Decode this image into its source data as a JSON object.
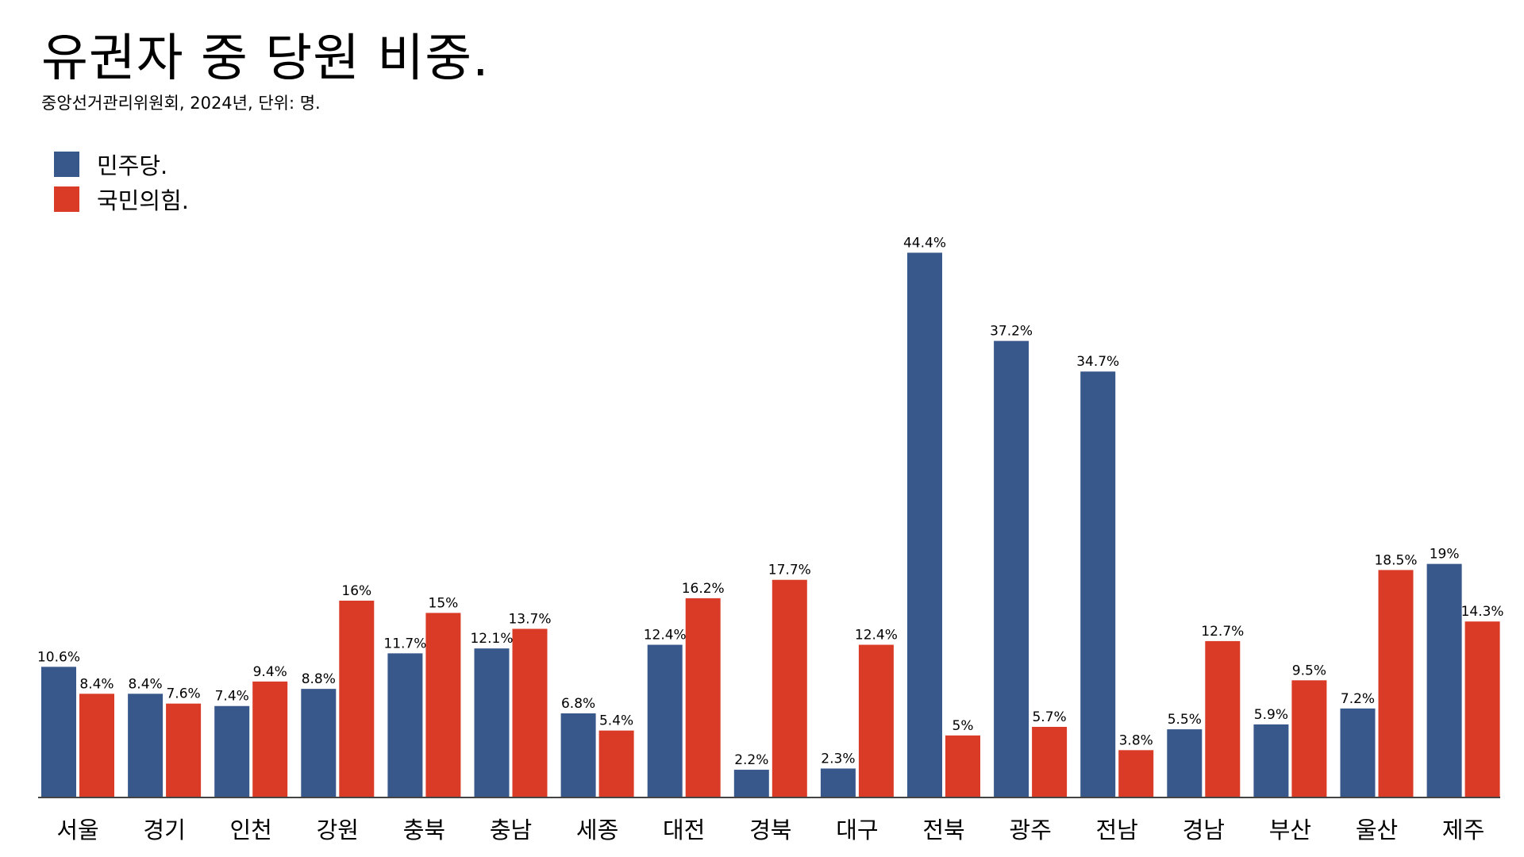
{
  "chart_data": {
    "type": "bar",
    "title": "유권자 중 당원 비중.",
    "subtitle": "중앙선거관리위원회, 2024년, 단위: 명.",
    "legend_position": "top-left",
    "grid": false,
    "ylim": [
      0,
      50
    ],
    "categories": [
      "서울",
      "경기",
      "인천",
      "강원",
      "충북",
      "충남",
      "세종",
      "대전",
      "경북",
      "대구",
      "전북",
      "광주",
      "전남",
      "경남",
      "부산",
      "울산",
      "제주"
    ],
    "series": [
      {
        "name": "민주당.",
        "color": "#38578a",
        "values": [
          10.6,
          8.4,
          7.4,
          8.8,
          11.7,
          12.1,
          6.8,
          12.4,
          2.2,
          2.3,
          44.4,
          37.2,
          34.7,
          5.5,
          5.9,
          7.2,
          19
        ],
        "labels": [
          "10.6%",
          "8.4%",
          "7.4%",
          "8.8%",
          "11.7%",
          "12.1%",
          "6.8%",
          "12.4%",
          "2.2%",
          "2.3%",
          "44.4%",
          "37.2%",
          "34.7%",
          "5.5%",
          "5.9%",
          "7.2%",
          "19%"
        ]
      },
      {
        "name": "국민의힘.",
        "color": "#d93b27",
        "values": [
          8.4,
          7.6,
          9.4,
          16,
          15,
          13.7,
          5.4,
          16.2,
          17.7,
          12.4,
          5,
          5.7,
          3.8,
          12.7,
          9.5,
          18.5,
          14.3
        ],
        "labels": [
          "8.4%",
          "7.6%",
          "9.4%",
          "16%",
          "15%",
          "13.7%",
          "5.4%",
          "16.2%",
          "17.7%",
          "12.4%",
          "5%",
          "5.7%",
          "3.8%",
          "12.7%",
          "9.5%",
          "18.5%",
          "14.3%"
        ]
      }
    ]
  }
}
